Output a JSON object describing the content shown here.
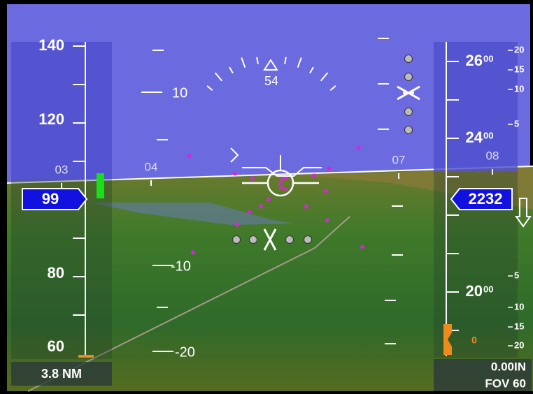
{
  "airspeed": {
    "labels": [
      "140",
      "120",
      "80",
      "60"
    ],
    "current": "99",
    "distance": "3.8 NM"
  },
  "heading": {
    "current": "54",
    "runway_marks": [
      "03",
      "04",
      "07",
      "08"
    ]
  },
  "pitch_ladder": [
    "10",
    "-10",
    "-20"
  ],
  "altitude": {
    "labels": [
      {
        "hundreds": "26",
        "tens": "00"
      },
      {
        "hundreds": "24",
        "tens": "00"
      },
      {
        "hundreds": "20",
        "tens": "00"
      }
    ],
    "current": "2232"
  },
  "vertical_speed": {
    "labels": [
      "20",
      "15",
      "10",
      "5",
      "5",
      "10",
      "15",
      "20"
    ],
    "current": "0"
  },
  "barometer": "0.00IN",
  "fov": "FOV 60"
}
